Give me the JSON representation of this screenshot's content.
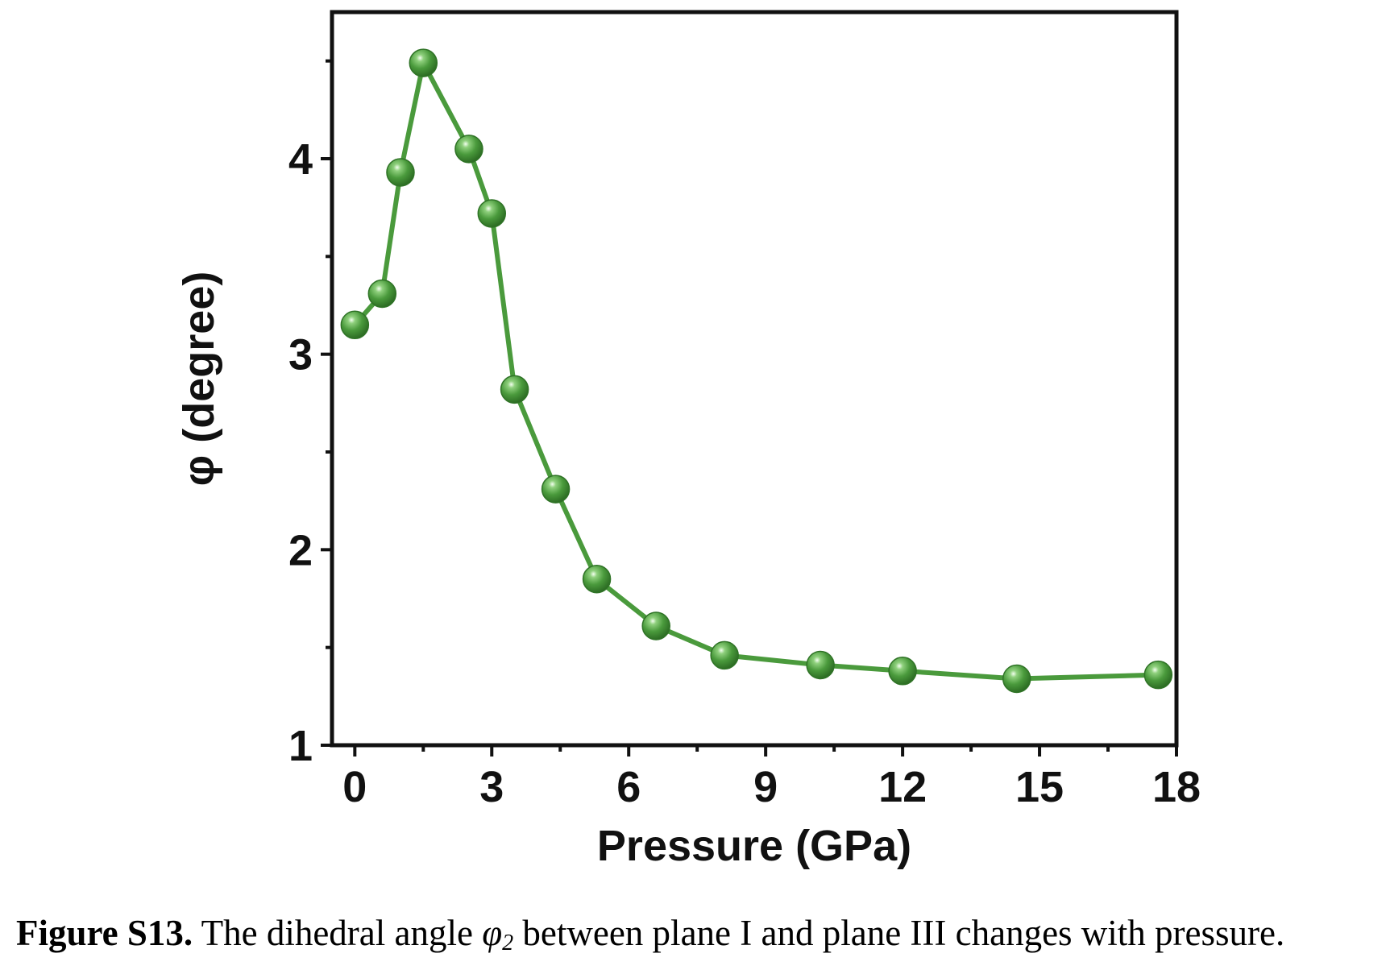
{
  "chart_data": {
    "type": "line",
    "xlabel": "Pressure (GPa)",
    "ylabel": "φ (degree)",
    "xlim": [
      -0.5,
      18
    ],
    "ylim": [
      1,
      4.75
    ],
    "xticks": [
      0,
      3,
      6,
      9,
      12,
      15,
      18
    ],
    "xtick_labels": [
      "0",
      "3",
      "6",
      "9",
      "12",
      "15",
      "18"
    ],
    "yticks": [
      1,
      2,
      3,
      4
    ],
    "ytick_labels": [
      "1",
      "2",
      "3",
      "4"
    ],
    "grid": false,
    "legend": "none",
    "series": [
      {
        "color": "#4a9a3c",
        "marker": "sphere",
        "x": [
          0.0,
          0.6,
          1.0,
          1.5,
          2.5,
          3.0,
          3.5,
          4.4,
          5.3,
          6.6,
          8.1,
          10.2,
          12.0,
          14.5,
          17.6
        ],
        "y": [
          3.15,
          3.31,
          3.93,
          4.49,
          4.05,
          3.72,
          2.82,
          2.31,
          1.85,
          1.61,
          1.46,
          1.41,
          1.38,
          1.34,
          1.36
        ]
      }
    ]
  },
  "caption": {
    "lead": "Figure S13.",
    "text_before": " The dihedral angle ",
    "symbol": "φ",
    "subscript": "2",
    "text_after": " between plane I and plane III changes with pressure."
  }
}
